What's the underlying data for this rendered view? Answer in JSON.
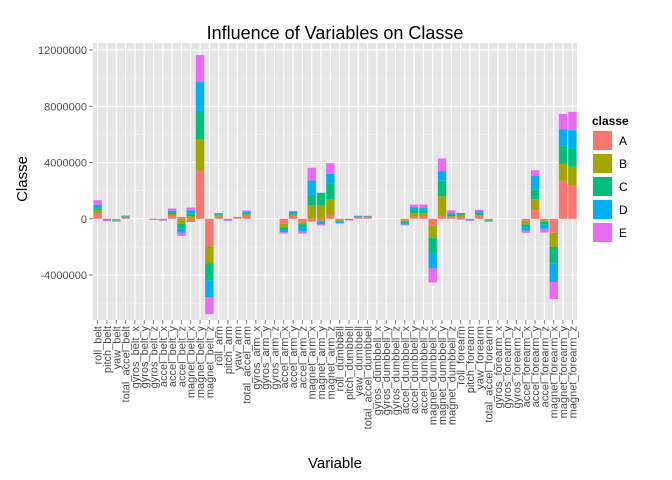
{
  "chart_data": {
    "type": "bar",
    "title": "Influence of Variables on Classe",
    "xlabel": "Variable",
    "ylabel": "Classe",
    "ylim": [
      -7200000,
      12500000
    ],
    "yticks": [
      -4000000,
      0,
      4000000,
      8000000,
      12000000
    ],
    "ytick_labels": [
      "-4000000",
      "0",
      "4000000",
      "8000000",
      "12000000"
    ],
    "grid": true,
    "legend": {
      "title": "classe",
      "placement": "right"
    },
    "categories": [
      "roll_belt",
      "pitch_belt",
      "yaw_belt",
      "total_accel_belt",
      "gyros_belt_x",
      "gyros_belt_y",
      "gyros_belt_z",
      "accel_belt_x",
      "accel_belt_y",
      "accel_belt_z",
      "magnet_belt_x",
      "magnet_belt_y",
      "magnet_belt_z",
      "roll_arm",
      "pitch_arm",
      "yaw_arm",
      "total_accel_arm",
      "gyros_arm_x",
      "gyros_arm_y",
      "gyros_arm_z",
      "accel_arm_x",
      "accel_arm_y",
      "accel_arm_z",
      "magnet_arm_x",
      "magnet_arm_y",
      "magnet_arm_z",
      "roll_dumbbell",
      "pitch_dumbbell",
      "yaw_dumbbell",
      "total_accel_dumbbell",
      "gyros_dumbbell_x",
      "gyros_dumbbell_y",
      "gyros_dumbbell_z",
      "accel_dumbbell_x",
      "accel_dumbbell_y",
      "accel_dumbbell_z",
      "magnet_dumbbell_x",
      "magnet_dumbbell_y",
      "magnet_dumbbell_z",
      "roll_forearm",
      "pitch_forearm",
      "yaw_forearm",
      "total_accel_forearm",
      "gyros_forearm_x",
      "gyros_forearm_y",
      "gyros_forearm_z",
      "accel_forearm_x",
      "accel_forearm_y",
      "accel_forearm_z",
      "magnet_forearm_x",
      "magnet_forearm_y",
      "magnet_forearm_z"
    ],
    "series": [
      {
        "name": "A",
        "color": "#F8766D",
        "values": [
          380000,
          -20000,
          -70000,
          90000,
          0,
          0,
          -10000,
          -35000,
          200000,
          130000,
          -230000,
          3430000,
          -1980000,
          150000,
          -40000,
          40000,
          200000,
          0,
          0,
          0,
          -350000,
          200000,
          -270000,
          -200000,
          -180000,
          300000,
          -100000,
          -20000,
          80000,
          70000,
          0,
          0,
          0,
          -130000,
          150000,
          200000,
          -500000,
          200000,
          80000,
          160000,
          -30000,
          200000,
          -60000,
          0,
          0,
          0,
          -150000,
          600000,
          -100000,
          -1000000,
          2700000,
          2400000
        ]
      },
      {
        "name": "B",
        "color": "#A3A500",
        "values": [
          220000,
          -40000,
          -40000,
          50000,
          0,
          0,
          -10000,
          -25000,
          140000,
          -360000,
          190000,
          2190000,
          -1200000,
          100000,
          -25000,
          30000,
          120000,
          0,
          0,
          0,
          -250000,
          100000,
          -110000,
          950000,
          950000,
          1100000,
          -70000,
          -20000,
          50000,
          50000,
          0,
          0,
          0,
          -100000,
          250000,
          200000,
          -880000,
          1400000,
          100000,
          130000,
          -30000,
          100000,
          -50000,
          0,
          0,
          0,
          -250000,
          800000,
          -120000,
          -1000000,
          1200000,
          1300000
        ]
      },
      {
        "name": "C",
        "color": "#00BF7D",
        "values": [
          150000,
          -20000,
          -30000,
          40000,
          0,
          0,
          -10000,
          -20000,
          110000,
          -310000,
          200000,
          2050000,
          -1200000,
          70000,
          -25000,
          20000,
          100000,
          0,
          0,
          0,
          -200000,
          100000,
          -270000,
          700000,
          900000,
          1100000,
          -50000,
          -20000,
          40000,
          40000,
          0,
          0,
          0,
          -90000,
          220000,
          180000,
          -1050000,
          1100000,
          120000,
          120000,
          -30000,
          120000,
          -40000,
          0,
          0,
          0,
          -250000,
          700000,
          -200000,
          -1200000,
          1300000,
          1300000
        ]
      },
      {
        "name": "D",
        "color": "#00B0F6",
        "values": [
          250000,
          -30000,
          -30000,
          30000,
          0,
          0,
          -10000,
          -30000,
          120000,
          -310000,
          210000,
          2050000,
          -1200000,
          60000,
          -20000,
          20000,
          90000,
          0,
          0,
          0,
          -150000,
          100000,
          -250000,
          1070000,
          -200000,
          700000,
          -90000,
          -20000,
          30000,
          30000,
          0,
          0,
          0,
          -80000,
          210000,
          180000,
          -1100000,
          690000,
          100000,
          -30000,
          -20000,
          130000,
          -30000,
          0,
          0,
          0,
          -200000,
          950000,
          -300000,
          -1300000,
          1150000,
          1300000
        ]
      },
      {
        "name": "E",
        "color": "#E76BF3",
        "values": [
          320000,
          -60000,
          -20000,
          30000,
          0,
          0,
          -10000,
          -20000,
          160000,
          -240000,
          200000,
          1920000,
          -1200000,
          30000,
          -20000,
          20000,
          80000,
          0,
          0,
          0,
          -100000,
          60000,
          -160000,
          910000,
          -100000,
          750000,
          -20000,
          -20000,
          20000,
          20000,
          0,
          0,
          0,
          -70000,
          180000,
          250000,
          -1000000,
          900000,
          200000,
          -20000,
          -30000,
          90000,
          -30000,
          0,
          0,
          0,
          -150000,
          400000,
          -250000,
          -1200000,
          1100000,
          1300000
        ]
      }
    ]
  }
}
